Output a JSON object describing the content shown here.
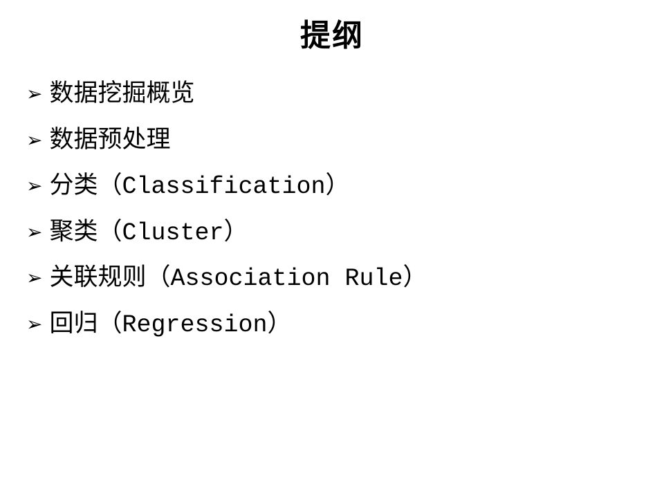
{
  "title": "提纲",
  "bullet_char": "➢",
  "items": [
    {
      "text": "数据挖掘概览",
      "english": ""
    },
    {
      "text": "数据预处理",
      "english": ""
    },
    {
      "text": "分类",
      "english": "（Classification）"
    },
    {
      "text": "聚类",
      "english": "（Cluster）"
    },
    {
      "text": "关联规则",
      "english": "（Association Rule）"
    },
    {
      "text": "回归",
      "english": "（Regression）"
    }
  ],
  "styling": {
    "background_color": "#ffffff",
    "text_color": "#000000",
    "title_fontsize": 44,
    "item_fontsize": 35,
    "bullet_fontsize": 28
  }
}
